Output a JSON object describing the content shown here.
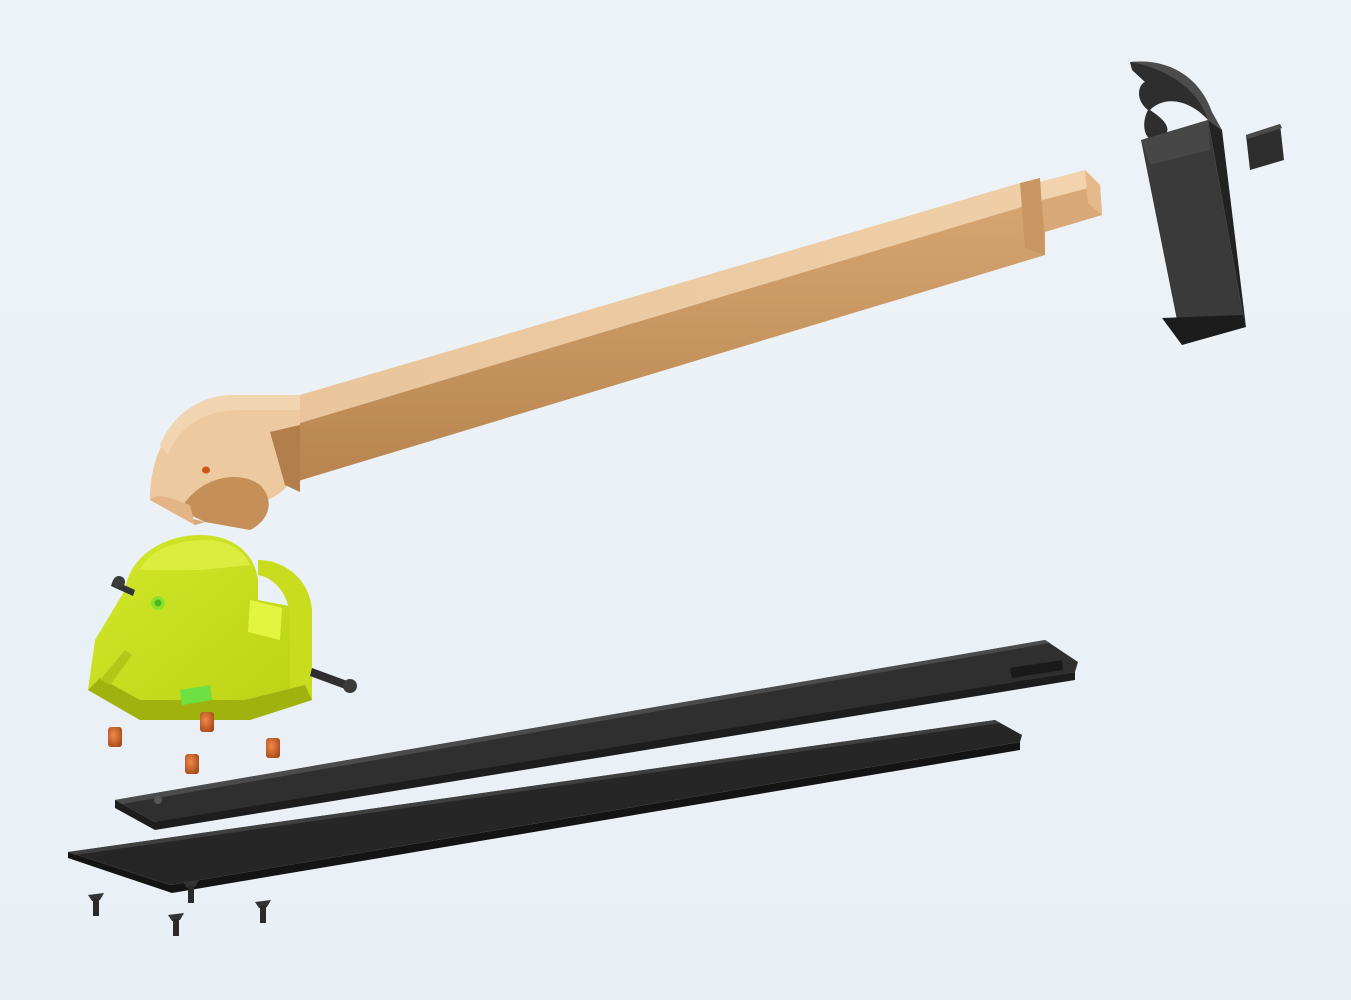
{
  "scene": {
    "background_color": "#ecf2f7",
    "colors": {
      "wood": "#e8c197",
      "wood_dark": "#c8945f",
      "wood_side": "#a97a4c",
      "plastic_black": "#2b2b2b",
      "plastic_black_light": "#4a4a4a",
      "fixture_yellow": "#c9e01a",
      "fixture_yellow_dark": "#a8bd12",
      "fixture_green": "#69d62a",
      "brass": "#c8622a",
      "screw": "#2e2e2e"
    },
    "parts": [
      {
        "id": "handle-cap",
        "name": "black-handle-cap-part"
      },
      {
        "id": "cap-insert",
        "name": "square-insert-part"
      },
      {
        "id": "handle",
        "name": "wooden-handle-part"
      },
      {
        "id": "fixture",
        "name": "yellow-fixture-part"
      },
      {
        "id": "threaded-inserts",
        "name": "threaded-insert-part",
        "count": 4
      },
      {
        "id": "upper-rail",
        "name": "upper-black-rail-part"
      },
      {
        "id": "lower-rail",
        "name": "lower-black-rail-part"
      },
      {
        "id": "screws",
        "name": "countersunk-screw-part",
        "count": 4
      }
    ]
  }
}
